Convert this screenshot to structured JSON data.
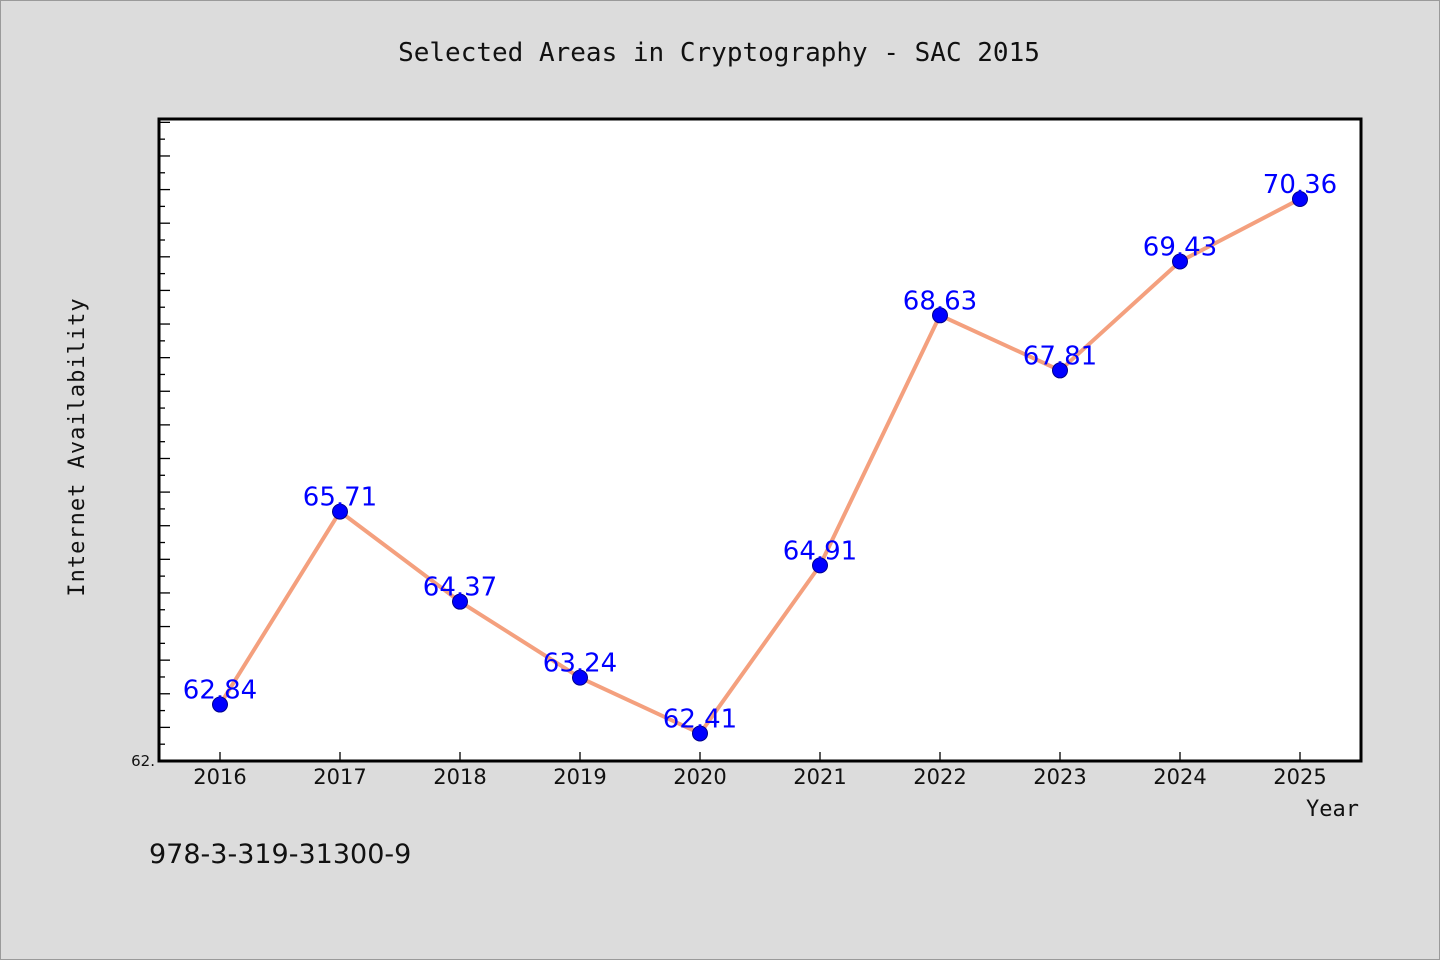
{
  "chart_data": {
    "type": "line",
    "title": "Selected Areas in Cryptography - SAC 2015",
    "xlabel": "Year",
    "ylabel": "Internet Availability",
    "x": [
      "2016",
      "2017",
      "2018",
      "2019",
      "2020",
      "2021",
      "2022",
      "2023",
      "2024",
      "2025"
    ],
    "series": [
      {
        "values": [
          62.84,
          65.71,
          64.37,
          63.24,
          62.41,
          64.91,
          68.63,
          67.81,
          69.43,
          70.36
        ]
      }
    ],
    "data_labels": [
      "62.84",
      "65.71",
      "64.37",
      "63.24",
      "62.41",
      "64.91",
      "68.63",
      "67.81",
      "69.43",
      "70.36"
    ],
    "y_tick_labels": [
      "62."
    ],
    "ylim": [
      62.0,
      71.55
    ],
    "grid": false,
    "legend": "none",
    "colors": {
      "line": "#f4a07e",
      "marker": "#0000ff",
      "data_label": "#0000ff",
      "plot_background": "#ffffff",
      "page_background": "#dcdcdc"
    }
  },
  "footer": {
    "isbn": "978-3-319-31300-9"
  }
}
